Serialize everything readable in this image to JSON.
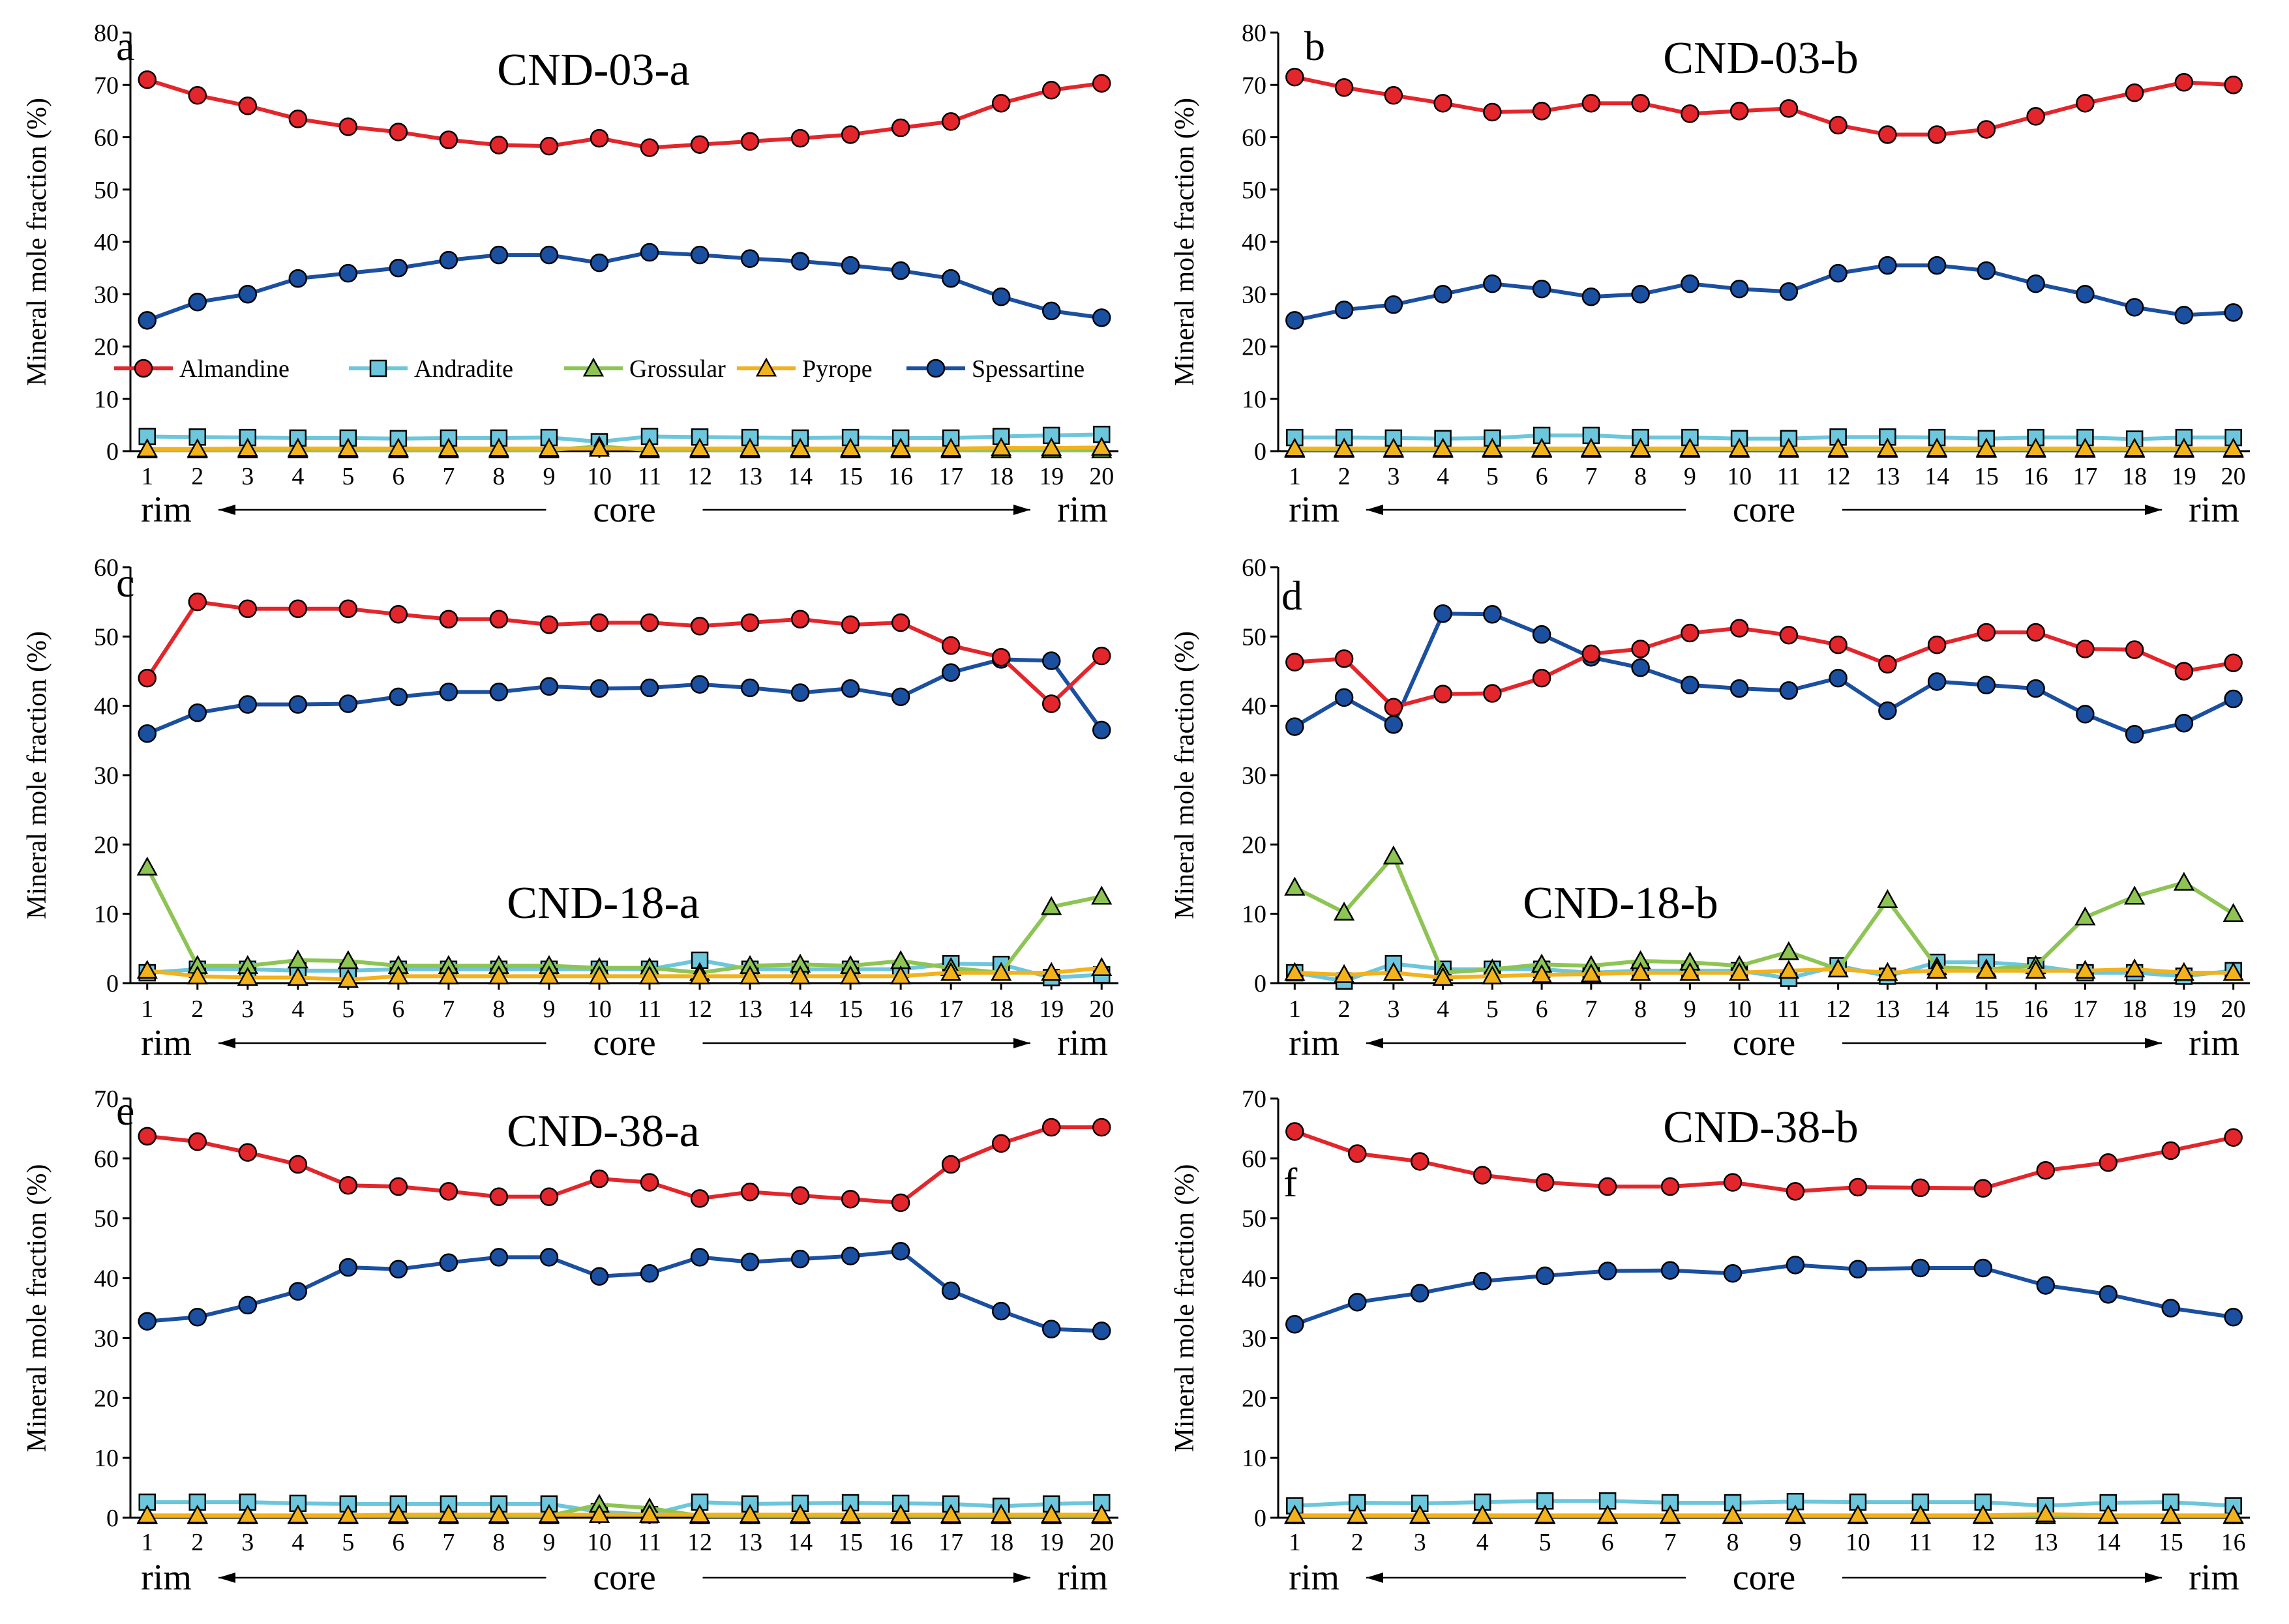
{
  "colors": {
    "Almandine": "#e3262b",
    "Andradite": "#6cc6dc",
    "Grossular": "#8dc453",
    "Pyrope": "#f2b21c",
    "Spessartine": "#1b4fa0",
    "axis": "#000000"
  },
  "legend": {
    "items": [
      {
        "label": "Almandine",
        "marker": "circle",
        "color": "#e3262b",
        "fill": "#e3262b"
      },
      {
        "label": "Andradite",
        "marker": "square",
        "color": "#6cc6dc",
        "fill": "#6cc6dc"
      },
      {
        "label": "Grossular",
        "marker": "triangle",
        "color": "#8dc453",
        "fill": "#8dc453"
      },
      {
        "label": "Pyrope",
        "marker": "triangle",
        "color": "#f2b21c",
        "fill": "#f2b21c"
      },
      {
        "label": "Spessartine",
        "marker": "circle",
        "color": "#1b4fa0",
        "fill": "#1b4fa0"
      }
    ]
  },
  "chart_data": [
    {
      "letter": "a",
      "title": "CND-03-a",
      "type": "line",
      "ylabel": "Mineral mole fraction (%)",
      "x": [
        1,
        2,
        3,
        4,
        5,
        6,
        7,
        8,
        9,
        10,
        11,
        12,
        13,
        14,
        15,
        16,
        17,
        18,
        19,
        20
      ],
      "ylim": [
        0,
        80
      ],
      "yticks": [
        0,
        10,
        20,
        30,
        40,
        50,
        60,
        70,
        80
      ],
      "axis_caption": {
        "left": "rim",
        "center": "core",
        "right": "rim"
      },
      "series": [
        {
          "name": "Almandine",
          "values": [
            71,
            68,
            66,
            63.5,
            62,
            61,
            59.5,
            58.5,
            58.3,
            59.8,
            58,
            58.6,
            59.2,
            59.8,
            60.5,
            61.8,
            63,
            66.5,
            69,
            70.3
          ]
        },
        {
          "name": "Spessartine",
          "values": [
            25,
            28.5,
            30,
            33,
            34,
            35,
            36.5,
            37.5,
            37.5,
            36,
            38,
            37.5,
            36.8,
            36.3,
            35.5,
            34.5,
            33,
            29.5,
            26.8,
            25.5
          ]
        },
        {
          "name": "Andradite",
          "values": [
            2.8,
            2.7,
            2.6,
            2.5,
            2.5,
            2.4,
            2.5,
            2.5,
            2.6,
            1.8,
            2.8,
            2.7,
            2.6,
            2.5,
            2.6,
            2.5,
            2.5,
            2.8,
            3,
            3.2
          ]
        },
        {
          "name": "Grossular",
          "values": [
            0.2,
            0.2,
            0.2,
            0.2,
            0.2,
            0.2,
            0.2,
            0.2,
            0.2,
            0.9,
            0.2,
            0.2,
            0.2,
            0.2,
            0.2,
            0.2,
            0.2,
            0.2,
            0.2,
            0.2
          ]
        },
        {
          "name": "Pyrope",
          "values": [
            0.4,
            0.4,
            0.5,
            0.5,
            0.5,
            0.5,
            0.5,
            0.5,
            0.5,
            0.5,
            0.5,
            0.5,
            0.5,
            0.5,
            0.5,
            0.5,
            0.5,
            0.6,
            0.6,
            0.7
          ]
        }
      ]
    },
    {
      "letter": "b",
      "title": "CND-03-b",
      "type": "line",
      "ylabel": "Mineral mole fraction (%)",
      "x": [
        1,
        2,
        3,
        4,
        5,
        6,
        7,
        8,
        9,
        10,
        11,
        12,
        13,
        14,
        15,
        16,
        17,
        18,
        19,
        20
      ],
      "ylim": [
        0,
        80
      ],
      "yticks": [
        0,
        10,
        20,
        30,
        40,
        50,
        60,
        70,
        80
      ],
      "axis_caption": {
        "left": "rim",
        "center": "core",
        "right": "rim"
      },
      "series": [
        {
          "name": "Almandine",
          "values": [
            71.5,
            69.5,
            68,
            66.5,
            64.8,
            65,
            66.5,
            66.5,
            64.5,
            65,
            65.5,
            62.3,
            60.5,
            60.5,
            61.5,
            64,
            66.5,
            68.5,
            70.5,
            70
          ]
        },
        {
          "name": "Spessartine",
          "values": [
            25,
            27,
            28,
            30,
            32,
            31,
            29.5,
            30,
            32,
            31,
            30.5,
            34,
            35.5,
            35.5,
            34.5,
            32,
            30,
            27.5,
            26,
            26.5
          ]
        },
        {
          "name": "Andradite",
          "values": [
            2.6,
            2.6,
            2.5,
            2.4,
            2.5,
            3,
            3,
            2.6,
            2.6,
            2.4,
            2.4,
            2.7,
            2.7,
            2.6,
            2.4,
            2.6,
            2.6,
            2.3,
            2.6,
            2.6
          ]
        },
        {
          "name": "Grossular",
          "values": [
            0.3,
            0.3,
            0.3,
            0.3,
            0.3,
            0.3,
            0.3,
            0.3,
            0.3,
            0.3,
            0.3,
            0.3,
            0.3,
            0.3,
            0.3,
            0.3,
            0.3,
            0.3,
            0.3,
            0.3
          ]
        },
        {
          "name": "Pyrope",
          "values": [
            0.5,
            0.5,
            0.5,
            0.5,
            0.5,
            0.5,
            0.5,
            0.5,
            0.5,
            0.5,
            0.5,
            0.5,
            0.5,
            0.5,
            0.5,
            0.5,
            0.5,
            0.5,
            0.5,
            0.5
          ]
        }
      ]
    },
    {
      "letter": "c",
      "title": "CND-18-a",
      "type": "line",
      "ylabel": "Mineral mole fraction (%)",
      "x": [
        1,
        2,
        3,
        4,
        5,
        6,
        7,
        8,
        9,
        10,
        11,
        12,
        13,
        14,
        15,
        16,
        17,
        18,
        19,
        20
      ],
      "ylim": [
        0,
        60
      ],
      "yticks": [
        0,
        10,
        20,
        30,
        40,
        50,
        60
      ],
      "axis_caption": {
        "left": "rim",
        "center": "core",
        "right": "rim"
      },
      "series": [
        {
          "name": "Almandine",
          "values": [
            44,
            55,
            54,
            54,
            54,
            53.2,
            52.5,
            52.5,
            51.7,
            52,
            52,
            51.5,
            52,
            52.5,
            51.7,
            52,
            48.7,
            47,
            40.3,
            47.2
          ]
        },
        {
          "name": "Spessartine",
          "values": [
            36,
            39,
            40.2,
            40.2,
            40.3,
            41.3,
            42,
            42,
            42.8,
            42.5,
            42.6,
            43.1,
            42.6,
            41.9,
            42.5,
            41.3,
            44.8,
            46.7,
            46.5,
            36.5
          ]
        },
        {
          "name": "Andradite",
          "values": [
            1.5,
            2,
            2,
            1.8,
            1.8,
            2,
            2,
            2,
            2,
            2,
            2,
            3.3,
            2,
            2,
            2,
            2,
            2.8,
            2.7,
            0.8,
            1.2
          ]
        },
        {
          "name": "Grossular",
          "values": [
            16.7,
            2.5,
            2.5,
            3.3,
            3.2,
            2.5,
            2.5,
            2.5,
            2.5,
            2.2,
            2.2,
            1.5,
            2.5,
            2.7,
            2.5,
            3.2,
            2.2,
            1.5,
            11,
            12.5
          ]
        },
        {
          "name": "Pyrope",
          "values": [
            1.8,
            1,
            0.8,
            0.8,
            0.5,
            1,
            1,
            1,
            1,
            1,
            1,
            1,
            1,
            1,
            1,
            1,
            1.5,
            1.5,
            1.5,
            2.2
          ]
        }
      ]
    },
    {
      "letter": "d",
      "title": "CND-18-b",
      "type": "line",
      "ylabel": "Mineral mole fraction (%)",
      "x": [
        1,
        2,
        3,
        4,
        5,
        6,
        7,
        8,
        9,
        10,
        11,
        12,
        13,
        14,
        15,
        16,
        17,
        18,
        19,
        20
      ],
      "ylim": [
        0,
        60
      ],
      "yticks": [
        0,
        10,
        20,
        30,
        40,
        50,
        60
      ],
      "axis_caption": {
        "left": "rim",
        "center": "core",
        "right": "rim"
      },
      "series": [
        {
          "name": "Almandine",
          "values": [
            46.3,
            46.8,
            39.8,
            41.7,
            41.8,
            44,
            47.5,
            48.2,
            50.5,
            51.2,
            50.2,
            48.8,
            46,
            48.8,
            50.6,
            50.6,
            48.2,
            48.1,
            45,
            46.2
          ]
        },
        {
          "name": "Spessartine",
          "values": [
            37,
            41.2,
            37.3,
            53.3,
            53.2,
            50.3,
            47,
            45.5,
            43,
            42.5,
            42.2,
            44,
            39.3,
            43.5,
            43,
            42.5,
            38.8,
            35.9,
            37.5,
            41
          ]
        },
        {
          "name": "Andradite",
          "values": [
            1.5,
            0.3,
            2.8,
            2,
            2,
            2,
            1.5,
            1.8,
            1.8,
            1.8,
            0.7,
            2.5,
            1,
            3,
            3,
            2.5,
            1.5,
            1.5,
            1,
            1.8
          ]
        },
        {
          "name": "Grossular",
          "values": [
            13.8,
            10.2,
            18.3,
            1.5,
            2,
            2.7,
            2.5,
            3.2,
            3,
            2.5,
            4.5,
            2,
            12,
            2.3,
            2,
            2.5,
            9.5,
            12.5,
            14.5,
            10
          ]
        },
        {
          "name": "Pyrope",
          "values": [
            1.5,
            1.2,
            1.5,
            0.8,
            1,
            1.2,
            1.3,
            1.5,
            1.5,
            1.5,
            1.8,
            2,
            1.5,
            1.8,
            1.8,
            1.8,
            1.8,
            2,
            1.5,
            1.5
          ]
        }
      ]
    },
    {
      "letter": "e",
      "title": "CND-38-a",
      "type": "line",
      "ylabel": "Mineral mole fraction (%)",
      "x": [
        1,
        2,
        3,
        4,
        5,
        6,
        7,
        8,
        9,
        10,
        11,
        12,
        13,
        14,
        15,
        16,
        17,
        18,
        19,
        20
      ],
      "ylim": [
        0,
        70
      ],
      "yticks": [
        0,
        10,
        20,
        30,
        40,
        50,
        60,
        70
      ],
      "axis_caption": {
        "left": "rim",
        "center": "core",
        "right": "rim"
      },
      "series": [
        {
          "name": "Almandine",
          "values": [
            63.7,
            62.8,
            61,
            59,
            55.5,
            55.3,
            54.5,
            53.6,
            53.6,
            56.6,
            56,
            53.3,
            54.4,
            53.8,
            53.2,
            52.6,
            59,
            62.5,
            65.2,
            65.2
          ]
        },
        {
          "name": "Spessartine",
          "values": [
            32.8,
            33.5,
            35.5,
            37.8,
            41.8,
            41.5,
            42.6,
            43.5,
            43.5,
            40.3,
            40.8,
            43.5,
            42.7,
            43.2,
            43.7,
            44.5,
            37.9,
            34.5,
            31.5,
            31.2
          ]
        },
        {
          "name": "Andradite",
          "values": [
            2.6,
            2.6,
            2.6,
            2.4,
            2.3,
            2.3,
            2.3,
            2.3,
            2.3,
            1,
            0.5,
            2.6,
            2.3,
            2.4,
            2.5,
            2.4,
            2.3,
            1.9,
            2.3,
            2.5
          ]
        },
        {
          "name": "Grossular",
          "values": [
            0.3,
            0.3,
            0.3,
            0.3,
            0.3,
            0.3,
            0.3,
            0.3,
            0.3,
            2.2,
            1.6,
            0.3,
            0.3,
            0.3,
            0.3,
            0.3,
            0.3,
            0.3,
            0.3,
            0.3
          ]
        },
        {
          "name": "Pyrope",
          "values": [
            0.4,
            0.4,
            0.4,
            0.4,
            0.4,
            0.5,
            0.5,
            0.5,
            0.5,
            0.5,
            0.5,
            0.5,
            0.5,
            0.5,
            0.5,
            0.5,
            0.5,
            0.5,
            0.5,
            0.5
          ]
        }
      ]
    },
    {
      "letter": "f",
      "title": "CND-38-b",
      "type": "line",
      "ylabel": "Mineral mole fraction (%)",
      "x": [
        1,
        2,
        3,
        4,
        5,
        6,
        7,
        8,
        9,
        10,
        11,
        12,
        13,
        14,
        15,
        16
      ],
      "ylim": [
        0,
        70
      ],
      "yticks": [
        0,
        10,
        20,
        30,
        40,
        50,
        60,
        70
      ],
      "axis_caption": {
        "left": "rim",
        "center": "core",
        "right": "rim"
      },
      "series": [
        {
          "name": "Almandine",
          "values": [
            64.5,
            60.8,
            59.5,
            57.2,
            56,
            55.3,
            55.3,
            56,
            54.5,
            55.2,
            55.1,
            55,
            58,
            59.3,
            61.3,
            63.5
          ]
        },
        {
          "name": "Spessartine",
          "values": [
            32.3,
            36,
            37.5,
            39.5,
            40.4,
            41.2,
            41.3,
            40.8,
            42.2,
            41.5,
            41.7,
            41.7,
            38.8,
            37.3,
            35,
            33.5
          ]
        },
        {
          "name": "Andradite",
          "values": [
            2,
            2.5,
            2.4,
            2.6,
            2.8,
            2.8,
            2.5,
            2.5,
            2.7,
            2.6,
            2.6,
            2.6,
            2,
            2.5,
            2.6,
            2
          ]
        },
        {
          "name": "Grossular",
          "values": [
            0.3,
            0.3,
            0.3,
            0.3,
            0.3,
            0.3,
            0.3,
            0.3,
            0.3,
            0.3,
            0.3,
            0.3,
            0.3,
            0.3,
            0.3,
            0.3
          ]
        },
        {
          "name": "Pyrope",
          "values": [
            0.4,
            0.4,
            0.4,
            0.4,
            0.4,
            0.4,
            0.4,
            0.4,
            0.4,
            0.4,
            0.4,
            0.4,
            0.6,
            0.4,
            0.4,
            0.4
          ]
        }
      ]
    }
  ]
}
